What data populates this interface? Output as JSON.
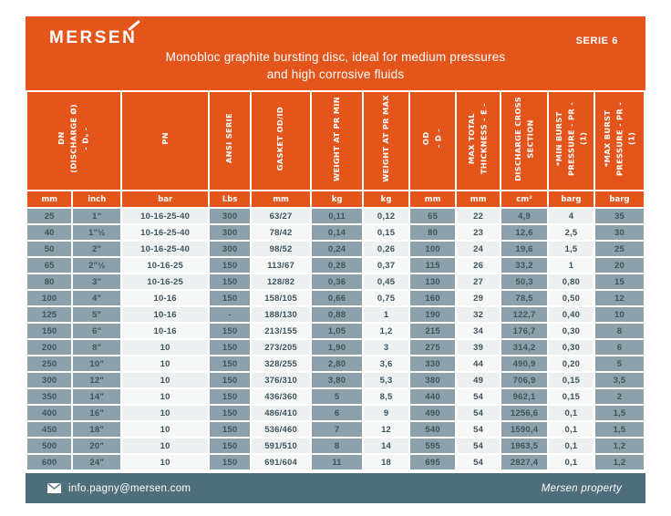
{
  "colors": {
    "orange": "#E4551C",
    "slate": "#4E6E7C",
    "cell_gray": "#8CA1AB",
    "text_dark": "#3E545E",
    "row_light_a": "#ECF0F1",
    "row_light_b": "#F6F8F8",
    "white": "#FFFFFF"
  },
  "header": {
    "logo": "MERSEN",
    "serie": "SERIE 6",
    "title_line1": "Monobloc graphite bursting disc, ideal for medium pressures",
    "title_line2": "and high corrosive fluids"
  },
  "table": {
    "headers": [
      {
        "label": "DN\n(DISCHARGE Ø)\n- Dₑ -"
      },
      {
        "label": "PN"
      },
      {
        "label": "ANSI SERIE"
      },
      {
        "label": "GASKET OD/ID"
      },
      {
        "label": "WEIGHT AT PR MIN"
      },
      {
        "label": "WEIGHT AT PR MAX"
      },
      {
        "label": "OD\n- D -"
      },
      {
        "label": "MAX TOTAL\nTHICKNESS - E -"
      },
      {
        "label": "DISCHARGE CROSS\nSECTION"
      },
      {
        "label": "*MIN BURST\nPRESSURE - PR - (1)"
      },
      {
        "label": "*MAX BURST\nPRESSURE - PR - (1)"
      }
    ],
    "units": [
      "mm",
      "inch",
      "bar",
      "Lbs",
      "mm",
      "kg",
      "kg",
      "mm",
      "mm",
      "cm²",
      "barg",
      "barg"
    ],
    "rows": [
      [
        "25",
        "1\"",
        "10-16-25-40",
        "300",
        "63/27",
        "0,11",
        "0,12",
        "65",
        "22",
        "4,9",
        "4",
        "35"
      ],
      [
        "40",
        "1\"½",
        "10-16-25-40",
        "300",
        "78/42",
        "0,14",
        "0,15",
        "80",
        "23",
        "12,6",
        "2,5",
        "30"
      ],
      [
        "50",
        "2\"",
        "10-16-25-40",
        "300",
        "98/52",
        "0,24",
        "0,26",
        "100",
        "24",
        "19,6",
        "1,5",
        "25"
      ],
      [
        "65",
        "2\"½",
        "10-16-25",
        "150",
        "113/67",
        "0,28",
        "0,37",
        "115",
        "26",
        "33,2",
        "1",
        "20"
      ],
      [
        "80",
        "3\"",
        "10-16-25",
        "150",
        "128/82",
        "0,36",
        "0,45",
        "130",
        "27",
        "50,3",
        "0,80",
        "15"
      ],
      [
        "100",
        "4\"",
        "10-16",
        "150",
        "158/105",
        "0,66",
        "0,75",
        "160",
        "29",
        "78,5",
        "0,50",
        "12"
      ],
      [
        "125",
        "5\"",
        "10-16",
        "-",
        "188/130",
        "0,88",
        "1",
        "190",
        "32",
        "122,7",
        "0,40",
        "10"
      ],
      [
        "150",
        "6\"",
        "10-16",
        "150",
        "213/155",
        "1,05",
        "1,2",
        "215",
        "34",
        "176,7",
        "0,30",
        "8"
      ],
      [
        "200",
        "8\"",
        "10",
        "150",
        "273/205",
        "1,90",
        "3",
        "275",
        "39",
        "314,2",
        "0,30",
        "6"
      ],
      [
        "250",
        "10\"",
        "10",
        "150",
        "328/255",
        "2,80",
        "3,6",
        "330",
        "44",
        "490,9",
        "0,20",
        "5"
      ],
      [
        "300",
        "12\"",
        "10",
        "150",
        "376/310",
        "3,80",
        "5,3",
        "380",
        "49",
        "706,9",
        "0,15",
        "3,5"
      ],
      [
        "350",
        "14\"",
        "10",
        "150",
        "436/360",
        "5",
        "8,5",
        "440",
        "54",
        "962,1",
        "0,15",
        "2"
      ],
      [
        "400",
        "16\"",
        "10",
        "150",
        "486/410",
        "6",
        "9",
        "490",
        "54",
        "1256,6",
        "0,1",
        "1,5"
      ],
      [
        "450",
        "18\"",
        "10",
        "150",
        "536/460",
        "7",
        "12",
        "540",
        "54",
        "1590,4",
        "0,1",
        "1,5"
      ],
      [
        "500",
        "20\"",
        "10",
        "150",
        "591/510",
        "8",
        "14",
        "595",
        "54",
        "1963,5",
        "0,1",
        "1,2"
      ],
      [
        "600",
        "24\"",
        "10",
        "150",
        "691/604",
        "11",
        "18",
        "695",
        "54",
        "2827,4",
        "0,1",
        "1,2"
      ]
    ]
  },
  "footer": {
    "email": "info.pagny@mersen.com",
    "property": "Mersen property"
  }
}
